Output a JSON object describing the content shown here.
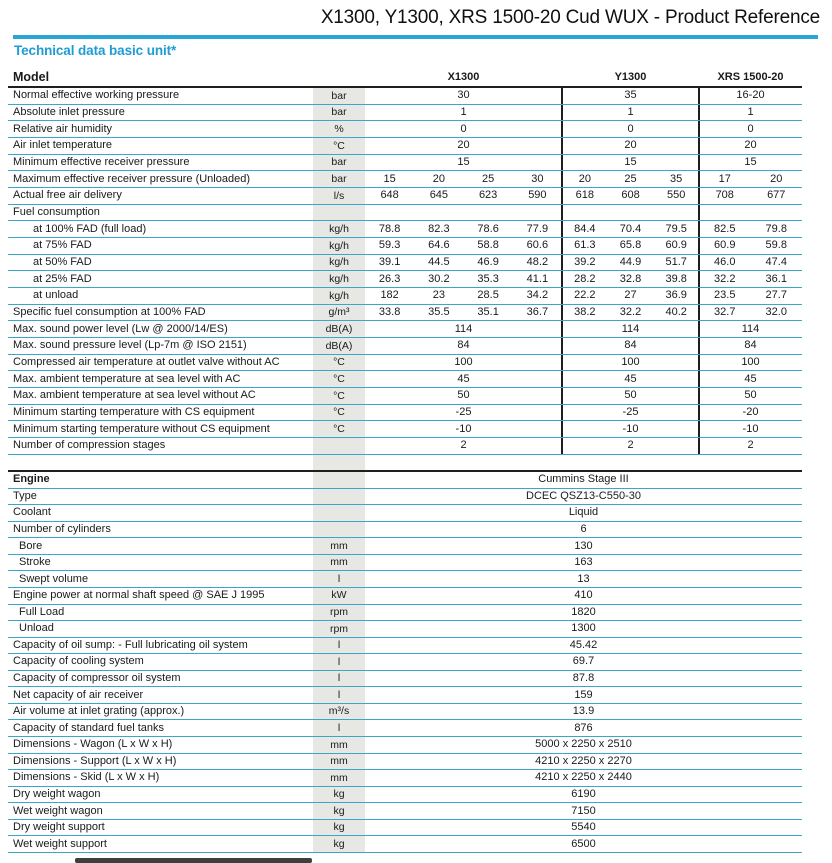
{
  "colors": {
    "accent": "#1f9cd3",
    "rule": "#29a6d6",
    "row_line": "#3ba6c8",
    "divider": "#1f1f1f",
    "unit_band": "#e7e7e4",
    "text": "#1a1a1a"
  },
  "title": "X1300, Y1300, XRS 1500-20 Cud WUX - Product Reference",
  "section_heading": "Technical data basic unit*",
  "table1": {
    "header": {
      "label": "Model",
      "cols": [
        "X1300",
        "Y1300",
        "XRS 1500-20"
      ]
    },
    "rows": [
      {
        "label": "Normal effective working pressure",
        "unit": "bar",
        "indent": 0,
        "values": [
          "30",
          "35",
          "16-20"
        ]
      },
      {
        "label": "Absolute inlet pressure",
        "unit": "bar",
        "indent": 0,
        "values": [
          "1",
          "1",
          "1"
        ]
      },
      {
        "label": "Relative air humidity",
        "unit": "%",
        "indent": 0,
        "values": [
          "0",
          "0",
          "0"
        ]
      },
      {
        "label": "Air inlet temperature",
        "unit": "°C",
        "indent": 0,
        "values": [
          "20",
          "20",
          "20"
        ]
      },
      {
        "label": "Minimum effective receiver pressure",
        "unit": "bar",
        "indent": 0,
        "values": [
          "15",
          "15",
          "15"
        ]
      },
      {
        "label": "Maximum effective receiver pressure (Unloaded)",
        "unit": "bar",
        "indent": 0,
        "values": [
          [
            "15",
            "20",
            "25",
            "30"
          ],
          [
            "20",
            "25",
            "35"
          ],
          [
            "17",
            "20"
          ]
        ]
      },
      {
        "label": "Actual free air delivery",
        "unit": "l/s",
        "indent": 0,
        "values": [
          [
            "648",
            "645",
            "623",
            "590"
          ],
          [
            "618",
            "608",
            "550"
          ],
          [
            "708",
            "677"
          ]
        ]
      },
      {
        "label": "Fuel consumption",
        "unit": "",
        "indent": 0,
        "values": null
      },
      {
        "label": "at 100% FAD (full load)",
        "unit": "kg/h",
        "indent": 2,
        "values": [
          [
            "78.8",
            "82.3",
            "78.6",
            "77.9"
          ],
          [
            "84.4",
            "70.4",
            "79.5"
          ],
          [
            "82.5",
            "79.8"
          ]
        ]
      },
      {
        "label": "at 75% FAD",
        "unit": "kg/h",
        "indent": 2,
        "values": [
          [
            "59.3",
            "64.6",
            "58.8",
            "60.6"
          ],
          [
            "61.3",
            "65.8",
            "60.9"
          ],
          [
            "60.9",
            "59.8"
          ]
        ]
      },
      {
        "label": "at 50% FAD",
        "unit": "kg/h",
        "indent": 2,
        "values": [
          [
            "39.1",
            "44.5",
            "46.9",
            "48.2"
          ],
          [
            "39.2",
            "44.9",
            "51.7"
          ],
          [
            "46.0",
            "47.4"
          ]
        ]
      },
      {
        "label": "at 25% FAD",
        "unit": "kg/h",
        "indent": 2,
        "values": [
          [
            "26.3",
            "30.2",
            "35.3",
            "41.1"
          ],
          [
            "28.2",
            "32.8",
            "39.8"
          ],
          [
            "32.2",
            "36.1"
          ]
        ]
      },
      {
        "label": "at unload",
        "unit": "kg/h",
        "indent": 2,
        "values": [
          [
            "182",
            "23",
            "28.5",
            "34.2"
          ],
          [
            "22.2",
            "27",
            "36.9"
          ],
          [
            "23.5",
            "27.7"
          ]
        ]
      },
      {
        "label": "Specific fuel consumption at 100% FAD",
        "unit": "g/m³",
        "indent": 0,
        "values": [
          [
            "33.8",
            "35.5",
            "35.1",
            "36.7"
          ],
          [
            "38.2",
            "32.2",
            "40.2"
          ],
          [
            "32.7",
            "32.0"
          ]
        ]
      },
      {
        "label": "Max. sound power level (Lw @ 2000/14/ES)",
        "unit": "dB(A)",
        "indent": 0,
        "values": [
          "114",
          "114",
          "114"
        ]
      },
      {
        "label": "Max. sound pressure level (Lp-7m @ ISO 2151)",
        "unit": "dB(A)",
        "indent": 0,
        "values": [
          "84",
          "84",
          "84"
        ]
      },
      {
        "label": "Compressed air temperature at outlet valve without AC",
        "unit": "°C",
        "indent": 0,
        "values": [
          "100",
          "100",
          "100"
        ]
      },
      {
        "label": "Max. ambient temperature at sea level with AC",
        "unit": "°C",
        "indent": 0,
        "values": [
          "45",
          "45",
          "45"
        ]
      },
      {
        "label": "Max. ambient temperature at sea level without AC",
        "unit": "°C",
        "indent": 0,
        "values": [
          "50",
          "50",
          "50"
        ]
      },
      {
        "label": "Minimum starting temperature with CS equipment",
        "unit": "°C",
        "indent": 0,
        "values": [
          "-25",
          "-25",
          "-20"
        ]
      },
      {
        "label": "Minimum starting temperature without CS equipment",
        "unit": "°C",
        "indent": 0,
        "values": [
          "-10",
          "-10",
          "-10"
        ]
      },
      {
        "label": "Number of compression stages",
        "unit": "",
        "indent": 0,
        "values": [
          "2",
          "2",
          "2"
        ]
      }
    ]
  },
  "table2": {
    "rows": [
      {
        "label": "Engine",
        "unit": "",
        "indent": 0,
        "bold": true,
        "value": "Cummins Stage III"
      },
      {
        "label": "Type",
        "unit": "",
        "indent": 0,
        "bold": false,
        "value": "DCEC QSZ13-C550-30"
      },
      {
        "label": "Coolant",
        "unit": "",
        "indent": 0,
        "bold": false,
        "value": "Liquid"
      },
      {
        "label": "Number of cylinders",
        "unit": "",
        "indent": 0,
        "bold": false,
        "value": "6"
      },
      {
        "label": "Bore",
        "unit": "mm",
        "indent": 1,
        "bold": false,
        "value": "130"
      },
      {
        "label": "Stroke",
        "unit": "mm",
        "indent": 1,
        "bold": false,
        "value": "163"
      },
      {
        "label": "Swept volume",
        "unit": "l",
        "indent": 1,
        "bold": false,
        "value": "13"
      },
      {
        "label": "Engine power at normal shaft speed @ SAE J 1995",
        "unit": "kW",
        "indent": 0,
        "bold": false,
        "value": "410"
      },
      {
        "label": "Full Load",
        "unit": "rpm",
        "indent": 1,
        "bold": false,
        "value": "1820"
      },
      {
        "label": "Unload",
        "unit": "rpm",
        "indent": 1,
        "bold": false,
        "value": "1300"
      },
      {
        "label": "Capacity of oil sump: - Full lubricating oil system",
        "unit": "l",
        "indent": 0,
        "bold": false,
        "value": "45.42"
      },
      {
        "label": "Capacity of cooling system",
        "unit": "l",
        "indent": 0,
        "bold": false,
        "value": "69.7"
      },
      {
        "label": "Capacity of compressor oil system",
        "unit": "l",
        "indent": 0,
        "bold": false,
        "value": "87.8"
      },
      {
        "label": "Net capacity of air receiver",
        "unit": "l",
        "indent": 0,
        "bold": false,
        "value": "159"
      },
      {
        "label": "Air volume at inlet grating (approx.)",
        "unit": "m³/s",
        "indent": 0,
        "bold": false,
        "value": "13.9"
      },
      {
        "label": "Capacity of standard fuel tanks",
        "unit": "l",
        "indent": 0,
        "bold": false,
        "value": "876"
      },
      {
        "label": "Dimensions - Wagon (L x W x H)",
        "unit": "mm",
        "indent": 0,
        "bold": false,
        "value": "5000 x 2250 x 2510"
      },
      {
        "label": "Dimensions - Support (L x W x H)",
        "unit": "mm",
        "indent": 0,
        "bold": false,
        "value": "4210 x 2250 x 2270"
      },
      {
        "label": "Dimensions - Skid (L x W x H)",
        "unit": "mm",
        "indent": 0,
        "bold": false,
        "value": "4210 x 2250 x 2440"
      },
      {
        "label": "Dry weight wagon",
        "unit": "kg",
        "indent": 0,
        "bold": false,
        "value": "6190"
      },
      {
        "label": "Wet weight wagon",
        "unit": "kg",
        "indent": 0,
        "bold": false,
        "value": "7150"
      },
      {
        "label": "Dry weight support",
        "unit": "kg",
        "indent": 0,
        "bold": false,
        "value": "5540"
      },
      {
        "label": "Wet weight support",
        "unit": "kg",
        "indent": 0,
        "bold": false,
        "value": "6500"
      }
    ]
  }
}
